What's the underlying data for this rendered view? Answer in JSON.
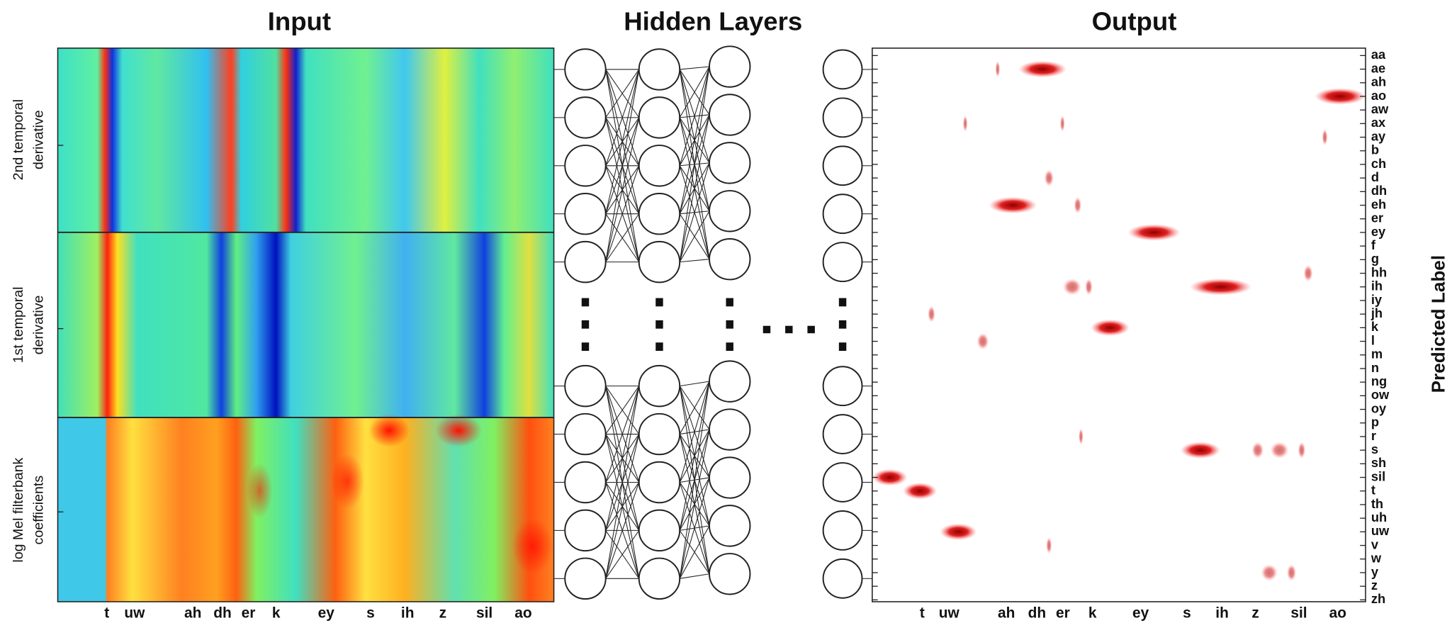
{
  "titles": {
    "input": "Input",
    "hidden": "Hidden Layers",
    "output": "Output"
  },
  "input": {
    "row_labels": [
      [
        "2nd temporal",
        "derivative"
      ],
      [
        "1st temporal",
        "derivative"
      ],
      [
        "log Mel filterbank",
        "coefficients"
      ]
    ],
    "x_labels": [
      "t",
      "uw",
      "ah",
      "dh",
      "er",
      "k",
      "ey",
      "s",
      "ih",
      "z",
      "sil",
      "ao"
    ]
  },
  "output": {
    "x_labels": [
      "t",
      "uw",
      "ah",
      "dh",
      "er",
      "k",
      "ey",
      "s",
      "ih",
      "z",
      "sil",
      "ao"
    ],
    "y_labels": [
      "aa",
      "ae",
      "ah",
      "ao",
      "aw",
      "ax",
      "ay",
      "b",
      "ch",
      "d",
      "dh",
      "eh",
      "er",
      "ey",
      "f",
      "g",
      "hh",
      "ih",
      "iy",
      "jh",
      "k",
      "l",
      "m",
      "n",
      "ng",
      "ow",
      "oy",
      "p",
      "r",
      "s",
      "sh",
      "sil",
      "t",
      "th",
      "uh",
      "uw",
      "v",
      "w",
      "y",
      "z",
      "zh"
    ],
    "axis_label": "Predicted Label"
  }
}
